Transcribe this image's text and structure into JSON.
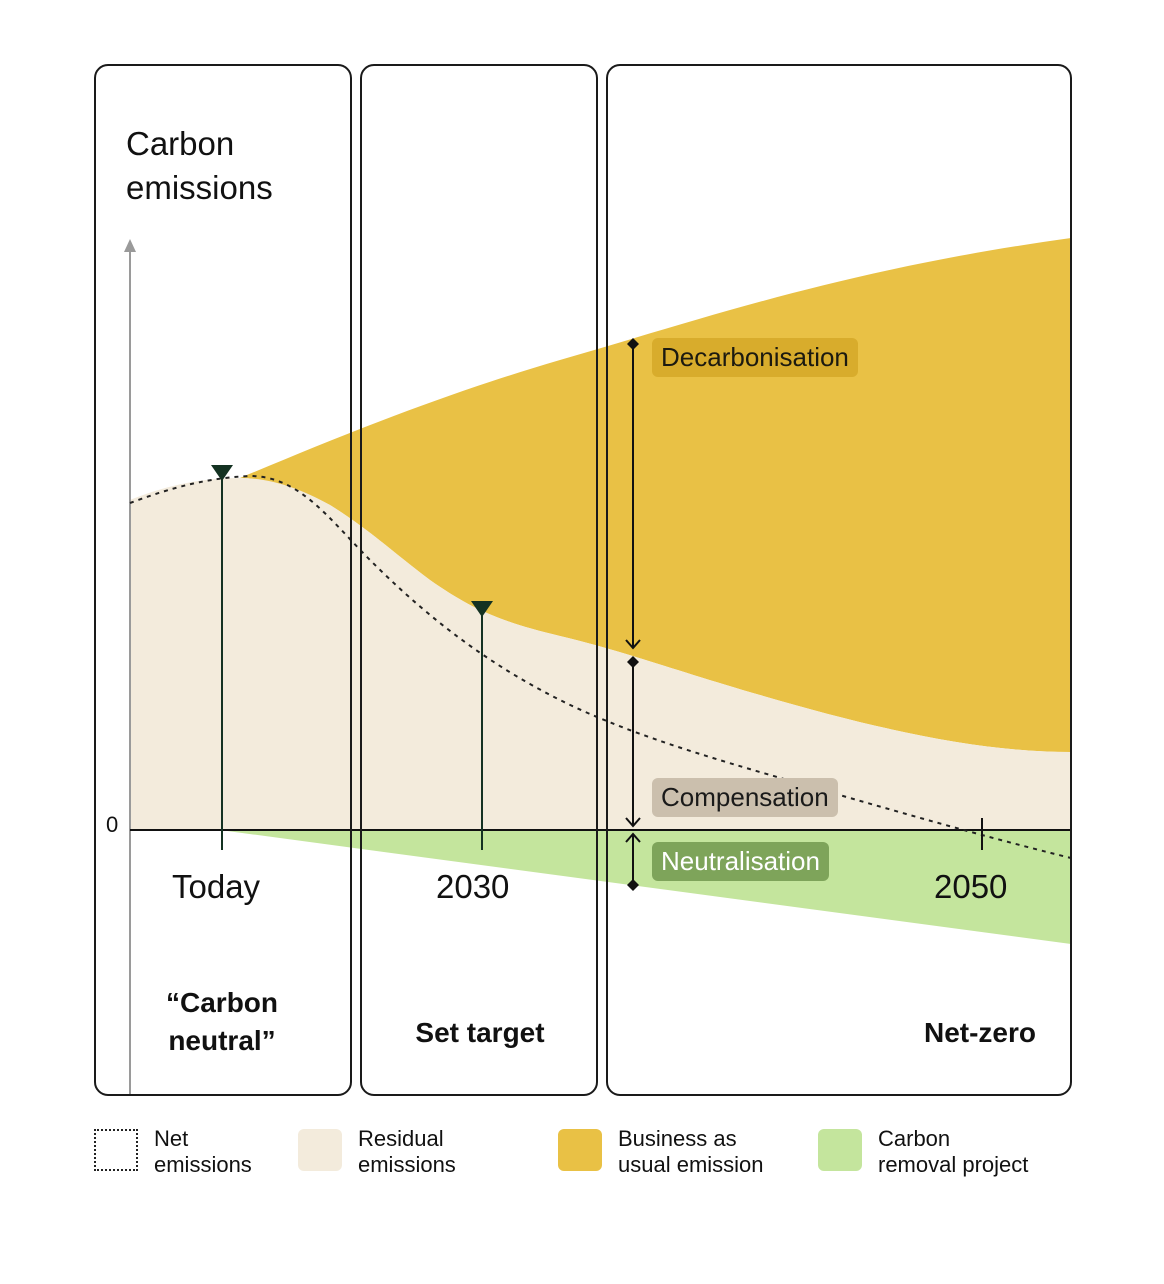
{
  "diagram": {
    "title": "Carbon\nemissions",
    "zero_label": "0",
    "years": {
      "today": "Today",
      "mid": "2030",
      "end": "2050"
    },
    "stages": {
      "first": "“Carbon\nneutral”",
      "second": "Set target",
      "third": "Net-zero"
    },
    "annotations": {
      "decarbonisation": "Decarbonisation",
      "compensation": "Compensation",
      "neutralisation": "Neutralisation"
    }
  },
  "legend": [
    {
      "label": "Net\nemissions",
      "style": "dotted"
    },
    {
      "label": "Residual\nemissions",
      "color": "#f3ebdc"
    },
    {
      "label": "Business as\nusual emission",
      "color": "#e9c145"
    },
    {
      "label": "Carbon\nremoval project",
      "color": "#c4e59d"
    }
  ],
  "colors": {
    "business_as_usual": "#e9c145",
    "residual": "#f3ebdc",
    "removal": "#c4e59d",
    "decarbonisation_tag": "#d8ac2c",
    "compensation_tag": "#cbbfad",
    "neutralisation_tag": "#7ea45a",
    "marker": "#143222"
  }
}
